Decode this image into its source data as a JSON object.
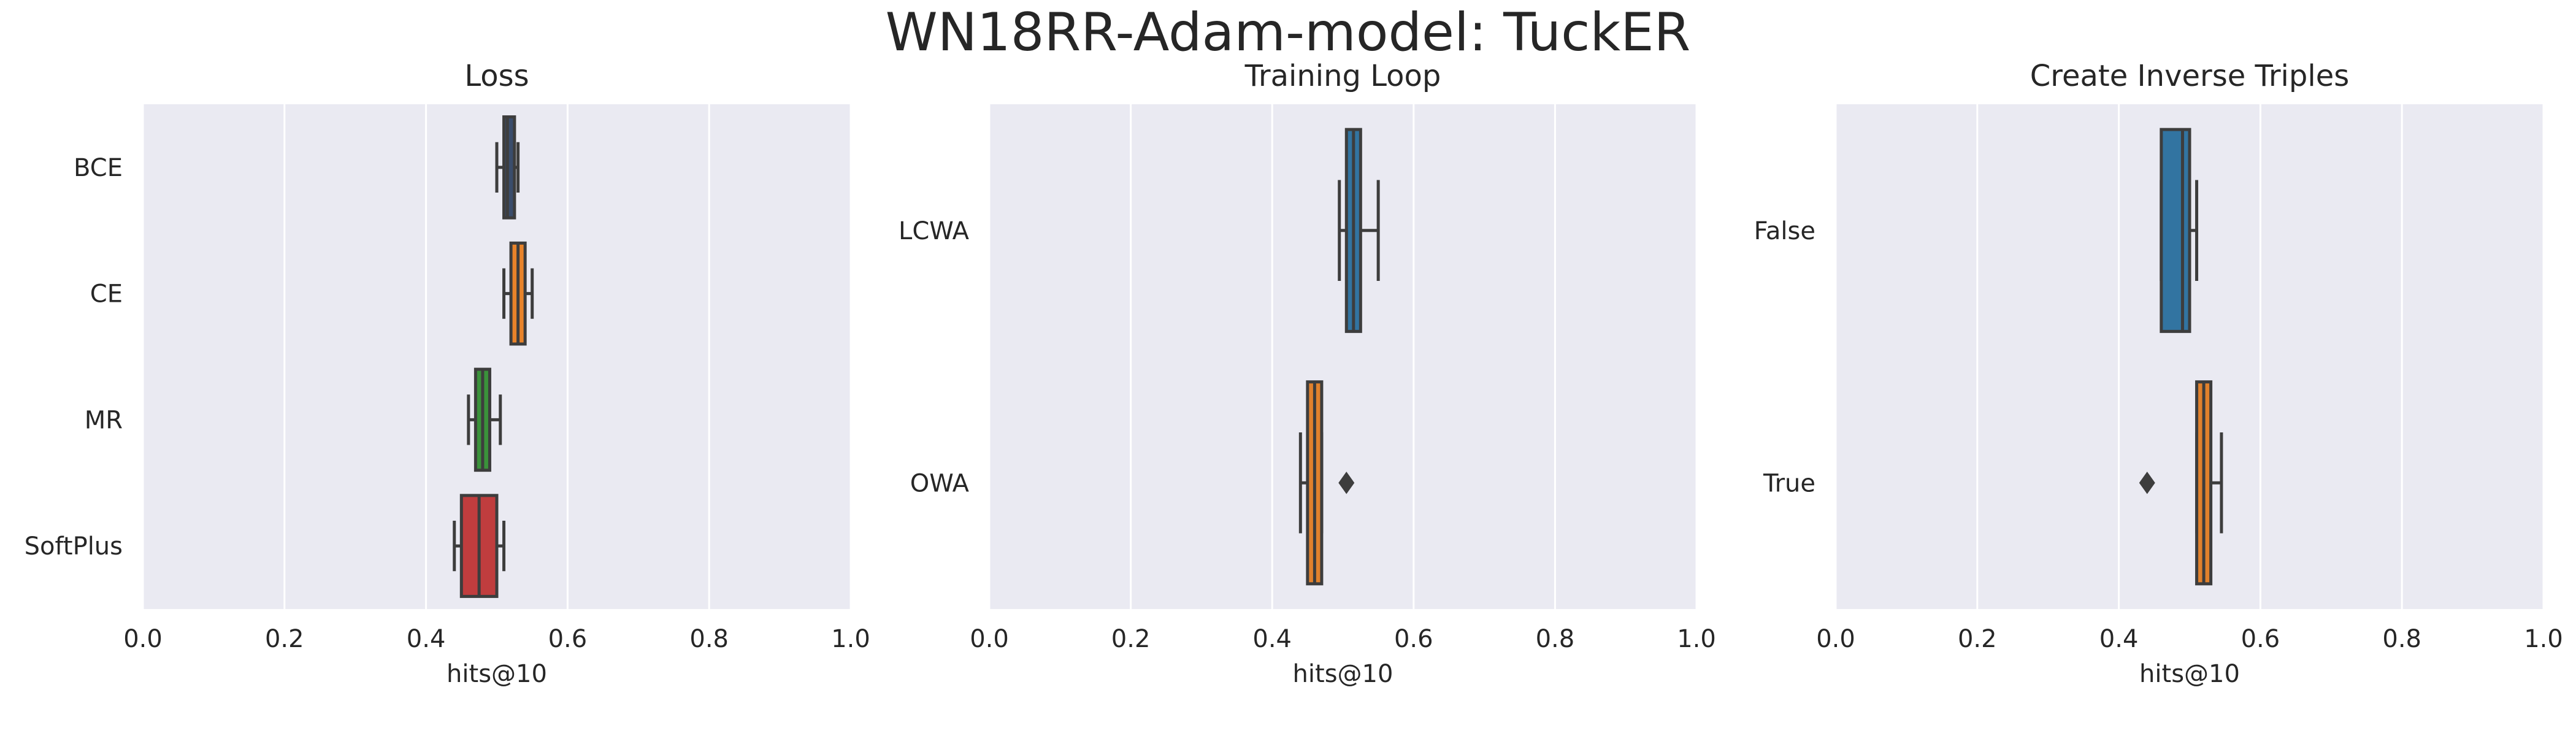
{
  "figure": {
    "title": "WN18RR-Adam-model: TuckER"
  },
  "chart_data": [
    {
      "type": "box",
      "orientation": "horizontal",
      "title": "Loss",
      "xlabel": "hits@10",
      "ylabel": "",
      "xlim": [
        0.0,
        1.0
      ],
      "xticks": [
        "0.0",
        "0.2",
        "0.4",
        "0.6",
        "0.8",
        "1.0"
      ],
      "grid": true,
      "categories": [
        "BCE",
        "CE",
        "MR",
        "SoftPlus"
      ],
      "colors": [
        "#3a4d6b",
        "#e8832a",
        "#3a923a",
        "#c03d3e"
      ],
      "boxes": [
        {
          "min": 0.5,
          "q1": 0.51,
          "median": 0.515,
          "q3": 0.525,
          "max": 0.53,
          "outliers": []
        },
        {
          "min": 0.51,
          "q1": 0.52,
          "median": 0.53,
          "q3": 0.54,
          "max": 0.55,
          "outliers": []
        },
        {
          "min": 0.46,
          "q1": 0.47,
          "median": 0.48,
          "q3": 0.49,
          "max": 0.505,
          "outliers": []
        },
        {
          "min": 0.44,
          "q1": 0.45,
          "median": 0.475,
          "q3": 0.5,
          "max": 0.51,
          "outliers": []
        }
      ]
    },
    {
      "type": "box",
      "orientation": "horizontal",
      "title": "Training Loop",
      "xlabel": "hits@10",
      "ylabel": "",
      "xlim": [
        0.0,
        1.0
      ],
      "xticks": [
        "0.0",
        "0.2",
        "0.4",
        "0.6",
        "0.8",
        "1.0"
      ],
      "grid": true,
      "categories": [
        "LCWA",
        "OWA"
      ],
      "colors": [
        "#3274a1",
        "#e1812c"
      ],
      "boxes": [
        {
          "min": 0.495,
          "q1": 0.505,
          "median": 0.515,
          "q3": 0.525,
          "max": 0.55,
          "outliers": []
        },
        {
          "min": 0.44,
          "q1": 0.45,
          "median": 0.46,
          "q3": 0.47,
          "max": 0.47,
          "outliers": [
            0.505
          ]
        }
      ]
    },
    {
      "type": "box",
      "orientation": "horizontal",
      "title": "Create Inverse Triples",
      "xlabel": "hits@10",
      "ylabel": "",
      "xlim": [
        0.0,
        1.0
      ],
      "xticks": [
        "0.0",
        "0.2",
        "0.4",
        "0.6",
        "0.8",
        "1.0"
      ],
      "grid": true,
      "categories": [
        "False",
        "True"
      ],
      "colors": [
        "#3274a1",
        "#e1812c"
      ],
      "boxes": [
        {
          "min": 0.46,
          "q1": 0.46,
          "median": 0.49,
          "q3": 0.5,
          "max": 0.51,
          "outliers": []
        },
        {
          "min": 0.51,
          "q1": 0.51,
          "median": 0.52,
          "q3": 0.53,
          "max": 0.545,
          "outliers": [
            0.44
          ]
        }
      ]
    }
  ]
}
